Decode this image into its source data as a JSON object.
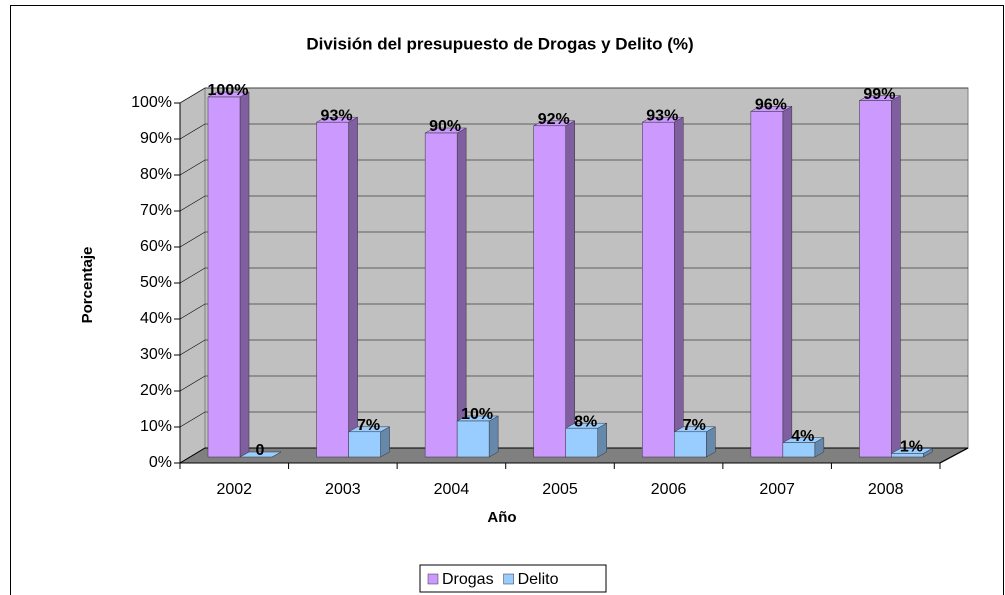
{
  "chart_data": {
    "type": "bar3d",
    "title": "División del presupuesto de Drogas y Delito (%)",
    "x_label": "Año",
    "y_label": "Porcentaje",
    "categories": [
      "2002",
      "2003",
      "2004",
      "2005",
      "2006",
      "2007",
      "2008"
    ],
    "series": [
      {
        "name": "Drogas",
        "color": "#cc99ff",
        "side_color": "#7f5f9f",
        "values": [
          100,
          93,
          90,
          92,
          93,
          96,
          99
        ],
        "value_labels": [
          "100%",
          "93%",
          "90%",
          "92%",
          "93%",
          "96%",
          "99%"
        ]
      },
      {
        "name": "Delito",
        "color": "#99ccff",
        "side_color": "#6688aa",
        "values": [
          0,
          7,
          10,
          8,
          7,
          4,
          1
        ],
        "value_labels": [
          "0",
          "7%",
          "10%",
          "8%",
          "7%",
          "4%",
          "1%"
        ]
      }
    ],
    "ylim": [
      0,
      100
    ],
    "yticks": [
      {
        "value": 0,
        "label": "0%"
      },
      {
        "value": 10,
        "label": "10%"
      },
      {
        "value": 20,
        "label": "20%"
      },
      {
        "value": 30,
        "label": "30%"
      },
      {
        "value": 40,
        "label": "40%"
      },
      {
        "value": 50,
        "label": "50%"
      },
      {
        "value": 60,
        "label": "60%"
      },
      {
        "value": 70,
        "label": "70%"
      },
      {
        "value": 80,
        "label": "80%"
      },
      {
        "value": 90,
        "label": "90%"
      },
      {
        "value": 100,
        "label": "100%"
      }
    ],
    "grid": true,
    "legend": "bottom"
  }
}
